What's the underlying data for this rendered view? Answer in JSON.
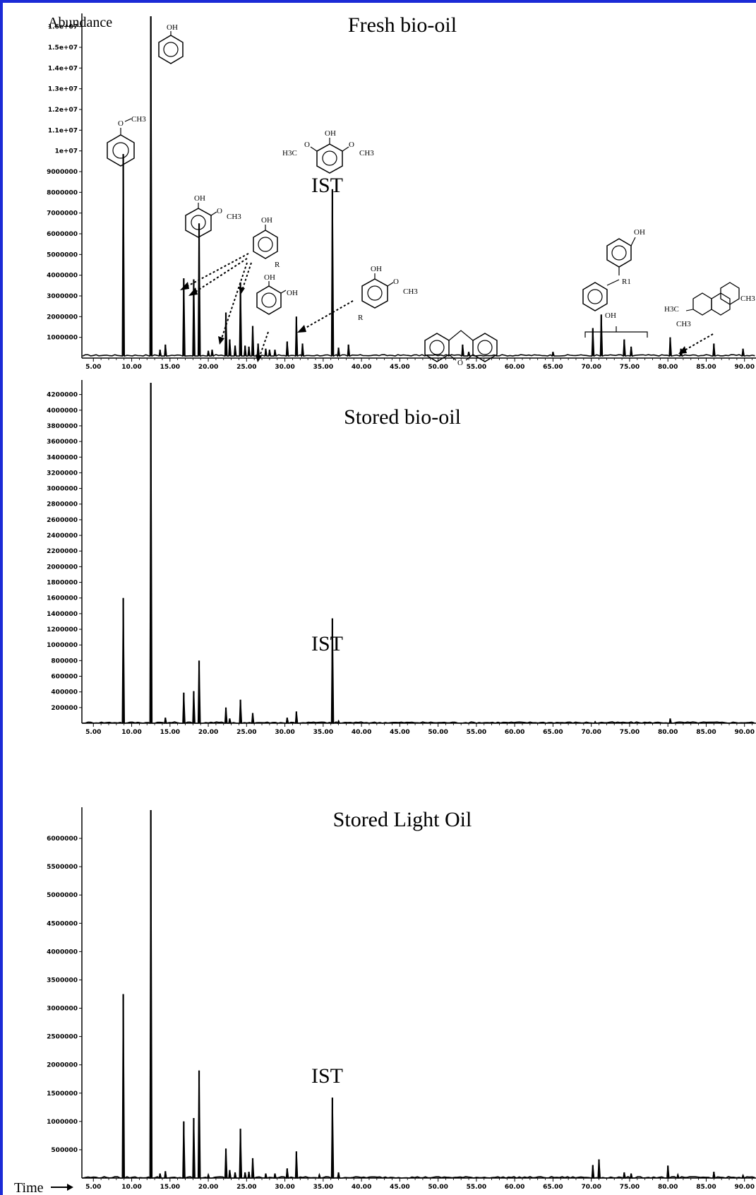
{
  "figure": {
    "y_axis_label": "Abundance",
    "x_axis_label": "Time",
    "ist_label": "IST"
  },
  "chemistry": {
    "oh": "OH",
    "ch3": "CH3",
    "h3c": "H3C",
    "o": "O",
    "r": "R",
    "r1": "R1"
  },
  "chart_data": [
    {
      "type": "line",
      "title": "Fresh bio-oil",
      "xlim": [
        3.5,
        91.5
      ],
      "ylim": [
        0,
        16500000
      ],
      "x_ticks": [
        "5.00",
        "10.00",
        "15.00",
        "20.00",
        "25.00",
        "30.00",
        "35.00",
        "40.00",
        "45.00",
        "50.00",
        "55.00",
        "60.00",
        "65.00",
        "70.00",
        "75.00",
        "80.00",
        "85.00",
        "90.00"
      ],
      "y_ticks": [
        "1000000",
        "2000000",
        "3000000",
        "4000000",
        "5000000",
        "6000000",
        "7000000",
        "8000000",
        "9000000",
        "1e+07",
        "1.1e+07",
        "1.2e+07",
        "1.3e+07",
        "1.4e+07",
        "1.5e+07",
        "1.6e+07"
      ],
      "baseline": 100000,
      "peaks": [
        {
          "x": 8.9,
          "y": 9850000
        },
        {
          "x": 12.5,
          "y": 16500000
        },
        {
          "x": 13.7,
          "y": 400000
        },
        {
          "x": 14.4,
          "y": 650000
        },
        {
          "x": 16.8,
          "y": 3850000
        },
        {
          "x": 18.1,
          "y": 3800000
        },
        {
          "x": 18.8,
          "y": 6500000
        },
        {
          "x": 20.0,
          "y": 350000
        },
        {
          "x": 20.5,
          "y": 400000
        },
        {
          "x": 22.3,
          "y": 2200000
        },
        {
          "x": 22.8,
          "y": 900000
        },
        {
          "x": 23.5,
          "y": 600000
        },
        {
          "x": 24.2,
          "y": 3650000
        },
        {
          "x": 24.8,
          "y": 600000
        },
        {
          "x": 25.3,
          "y": 550000
        },
        {
          "x": 25.8,
          "y": 1550000
        },
        {
          "x": 26.5,
          "y": 700000
        },
        {
          "x": 27.5,
          "y": 450000
        },
        {
          "x": 28.0,
          "y": 400000
        },
        {
          "x": 28.7,
          "y": 400000
        },
        {
          "x": 30.3,
          "y": 800000
        },
        {
          "x": 31.5,
          "y": 2000000
        },
        {
          "x": 32.3,
          "y": 700000
        },
        {
          "x": 36.2,
          "y": 8150000
        },
        {
          "x": 37.0,
          "y": 500000
        },
        {
          "x": 38.3,
          "y": 650000
        },
        {
          "x": 53.2,
          "y": 650000
        },
        {
          "x": 54.0,
          "y": 300000
        },
        {
          "x": 65.0,
          "y": 300000
        },
        {
          "x": 70.2,
          "y": 1450000
        },
        {
          "x": 71.3,
          "y": 2100000
        },
        {
          "x": 74.3,
          "y": 900000
        },
        {
          "x": 75.2,
          "y": 550000
        },
        {
          "x": 80.3,
          "y": 1000000
        },
        {
          "x": 81.7,
          "y": 450000
        },
        {
          "x": 86.0,
          "y": 700000
        },
        {
          "x": 89.8,
          "y": 450000
        }
      ]
    },
    {
      "type": "line",
      "title": "Stored bio-oil",
      "xlim": [
        3.5,
        91.5
      ],
      "ylim": [
        0,
        4350000
      ],
      "x_ticks": [
        "5.00",
        "10.00",
        "15.00",
        "20.00",
        "25.00",
        "30.00",
        "35.00",
        "40.00",
        "45.00",
        "50.00",
        "55.00",
        "60.00",
        "65.00",
        "70.00",
        "75.00",
        "80.00",
        "85.00",
        "90.00"
      ],
      "y_ticks": [
        "200000",
        "400000",
        "600000",
        "800000",
        "1000000",
        "1200000",
        "1400000",
        "1600000",
        "1800000",
        "2000000",
        "2200000",
        "2400000",
        "2600000",
        "2800000",
        "3000000",
        "3200000",
        "3400000",
        "3600000",
        "3800000",
        "4000000",
        "4200000"
      ],
      "baseline": 0,
      "peaks": [
        {
          "x": 8.9,
          "y": 1600000
        },
        {
          "x": 12.5,
          "y": 4350000
        },
        {
          "x": 14.4,
          "y": 70000
        },
        {
          "x": 16.8,
          "y": 390000
        },
        {
          "x": 18.1,
          "y": 410000
        },
        {
          "x": 18.8,
          "y": 800000
        },
        {
          "x": 22.3,
          "y": 200000
        },
        {
          "x": 22.8,
          "y": 60000
        },
        {
          "x": 24.2,
          "y": 300000
        },
        {
          "x": 25.8,
          "y": 130000
        },
        {
          "x": 30.3,
          "y": 70000
        },
        {
          "x": 31.5,
          "y": 150000
        },
        {
          "x": 36.2,
          "y": 1340000
        },
        {
          "x": 37.0,
          "y": 30000
        },
        {
          "x": 70.5,
          "y": 20000
        },
        {
          "x": 80.3,
          "y": 60000
        }
      ]
    },
    {
      "type": "line",
      "title": "Stored Light Oil",
      "xlim": [
        3.5,
        91.5
      ],
      "ylim": [
        0,
        6500000
      ],
      "x_ticks": [
        "5.00",
        "10.00",
        "15.00",
        "20.00",
        "25.00",
        "30.00",
        "35.00",
        "40.00",
        "45.00",
        "50.00",
        "55.00",
        "60.00",
        "65.00",
        "70.00",
        "75.00",
        "80.00",
        "85.00",
        "90.00"
      ],
      "y_ticks": [
        "500000",
        "1000000",
        "1500000",
        "2000000",
        "2500000",
        "3000000",
        "3500000",
        "4000000",
        "4500000",
        "5000000",
        "5500000",
        "6000000"
      ],
      "baseline": 0,
      "peaks": [
        {
          "x": 8.9,
          "y": 3250000
        },
        {
          "x": 12.5,
          "y": 6500000
        },
        {
          "x": 13.7,
          "y": 80000
        },
        {
          "x": 14.4,
          "y": 120000
        },
        {
          "x": 16.8,
          "y": 1000000
        },
        {
          "x": 18.1,
          "y": 1060000
        },
        {
          "x": 18.8,
          "y": 1900000
        },
        {
          "x": 20.0,
          "y": 60000
        },
        {
          "x": 22.3,
          "y": 520000
        },
        {
          "x": 22.8,
          "y": 140000
        },
        {
          "x": 23.5,
          "y": 100000
        },
        {
          "x": 24.2,
          "y": 870000
        },
        {
          "x": 24.8,
          "y": 100000
        },
        {
          "x": 25.3,
          "y": 110000
        },
        {
          "x": 25.8,
          "y": 350000
        },
        {
          "x": 27.5,
          "y": 80000
        },
        {
          "x": 28.7,
          "y": 80000
        },
        {
          "x": 30.3,
          "y": 170000
        },
        {
          "x": 31.5,
          "y": 470000
        },
        {
          "x": 34.5,
          "y": 60000
        },
        {
          "x": 36.2,
          "y": 1420000
        },
        {
          "x": 37.0,
          "y": 100000
        },
        {
          "x": 70.2,
          "y": 230000
        },
        {
          "x": 71.0,
          "y": 330000
        },
        {
          "x": 74.3,
          "y": 100000
        },
        {
          "x": 75.2,
          "y": 80000
        },
        {
          "x": 80.0,
          "y": 220000
        },
        {
          "x": 81.3,
          "y": 60000
        },
        {
          "x": 86.0,
          "y": 110000
        },
        {
          "x": 89.8,
          "y": 50000
        }
      ]
    }
  ]
}
